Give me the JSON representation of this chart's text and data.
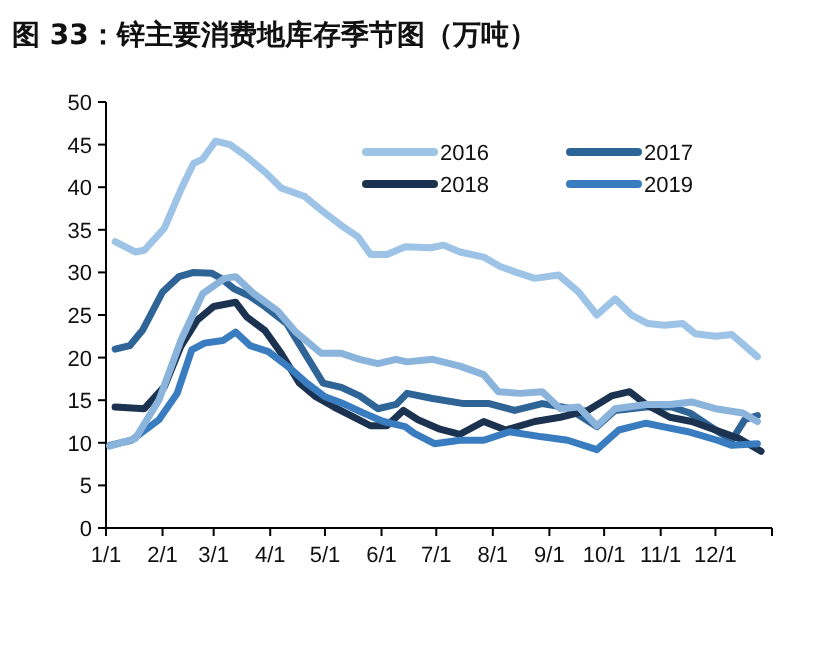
{
  "chart_data": {
    "type": "line",
    "title": "图 33：锌主要消费地库存季节图（万吨）",
    "xlim": [
      "--01-01",
      "--12-31"
    ],
    "xticks": [
      {
        "value": "--01-01",
        "label": "1/1"
      },
      {
        "value": "--02-01",
        "label": "2/1"
      },
      {
        "value": "--03-01",
        "label": "3/1"
      },
      {
        "value": "--04-01",
        "label": "4/1"
      },
      {
        "value": "--05-01",
        "label": "5/1"
      },
      {
        "value": "--06-01",
        "label": "6/1"
      },
      {
        "value": "--07-01",
        "label": "7/1"
      },
      {
        "value": "--08-01",
        "label": "8/1"
      },
      {
        "value": "--09-01",
        "label": "9/1"
      },
      {
        "value": "--10-01",
        "label": "10/1"
      },
      {
        "value": "--11-01",
        "label": "11/1"
      },
      {
        "value": "--12-01",
        "label": "12/1"
      }
    ],
    "ylim": [
      0,
      50
    ],
    "yticks": [
      0,
      5,
      10,
      15,
      20,
      25,
      30,
      35,
      40,
      45,
      50
    ],
    "legend": "top right",
    "series": [
      {
        "name": "2016",
        "color": "#9dc3e6",
        "x": [
          "--01-06",
          "--01-17",
          "--01-22",
          "--02-02",
          "--02-11",
          "--02-18",
          "--02-23",
          "--03-02",
          "--03-10",
          "--03-19",
          "--03-29",
          "--04-07",
          "--04-20",
          "--04-29",
          "--05-10",
          "--05-19",
          "--05-26",
          "--06-04",
          "--06-14",
          "--06-28",
          "--07-05",
          "--07-14",
          "--07-27",
          "--08-05",
          "--08-14",
          "--08-24",
          "--09-06",
          "--09-17",
          "--09-27",
          "--10-07",
          "--10-16",
          "--10-25",
          "--11-03",
          "--11-13",
          "--11-20",
          "--12-01",
          "--12-10",
          "--12-17",
          "--12-24"
        ],
        "values": [
          33.6,
          32.4,
          32.6,
          35.2,
          39.7,
          42.8,
          43.3,
          45.4,
          45,
          43.6,
          41.8,
          39.9,
          38.9,
          37.3,
          35.5,
          34.2,
          32.1,
          32.1,
          33,
          32.9,
          33.2,
          32.4,
          31.8,
          30.7,
          30,
          29.3,
          29.7,
          27.7,
          25,
          26.9,
          25,
          24,
          23.8,
          24,
          22.8,
          22.5,
          22.7,
          21.4,
          20.1
        ]
      },
      {
        "name": "2017",
        "color": "#2f6497",
        "x": [
          "--01-06",
          "--01-14",
          "--01-21",
          "--02-01",
          "--02-10",
          "--02-18",
          "--02-28",
          "--03-05",
          "--03-12",
          "--03-21",
          "--03-29",
          "--04-10",
          "--04-20",
          "--04-30",
          "--05-10",
          "--05-20",
          "--05-30",
          "--06-09",
          "--06-15",
          "--06-29",
          "--07-16",
          "--07-30",
          "--08-13",
          "--08-28",
          "--09-11",
          "--09-27",
          "--10-07",
          "--10-24",
          "--11-07",
          "--11-17",
          "--12-01",
          "--12-10",
          "--12-17",
          "--12-24"
        ],
        "values": [
          21,
          21.4,
          23.2,
          27.7,
          29.5,
          30,
          29.9,
          29.3,
          28.1,
          27.2,
          26,
          24,
          20.5,
          17,
          16.5,
          15.5,
          14,
          14.5,
          15.8,
          15.2,
          14.6,
          14.6,
          13.8,
          14.6,
          14.1,
          11.9,
          13.8,
          14.2,
          14.2,
          13.5,
          11.5,
          10.3,
          12.7,
          13.2
        ]
      },
      {
        "name": "2018",
        "color": "#1b3350",
        "x": [
          "--01-06",
          "--01-22",
          "--02-02",
          "--02-11",
          "--02-20",
          "--03-01",
          "--03-13",
          "--03-19",
          "--03-29",
          "--04-07",
          "--04-17",
          "--04-26",
          "--05-06",
          "--05-16",
          "--05-26",
          "--06-04",
          "--06-13",
          "--06-21",
          "--07-03",
          "--07-14",
          "--07-27",
          "--08-08",
          "--08-24",
          "--09-07",
          "--09-22",
          "--10-05",
          "--10-15",
          "--10-24",
          "--11-06",
          "--11-18",
          "--12-01",
          "--12-14",
          "--12-26"
        ],
        "values": [
          14.2,
          14,
          16.6,
          21.3,
          24.4,
          26,
          26.5,
          24.8,
          23.2,
          20.5,
          17,
          15.4,
          14.2,
          13.1,
          12,
          12,
          13.8,
          12.7,
          11.6,
          11,
          12.5,
          11.5,
          12.5,
          13,
          13.8,
          15.5,
          16,
          14.5,
          13,
          12.5,
          11.5,
          10.5,
          9
        ]
      },
      {
        "name": "2019",
        "color": "#3a7cc0",
        "x": [
          "--01-03",
          "--01-15",
          "--01-30",
          "--02-09",
          "--02-17",
          "--02-24",
          "--03-06",
          "--03-13",
          "--03-21",
          "--03-31",
          "--04-11",
          "--04-21",
          "--05-01",
          "--05-11",
          "--05-22",
          "--06-02",
          "--06-14",
          "--06-19",
          "--06-30",
          "--07-14",
          "--07-27",
          "--08-10",
          "--08-28",
          "--09-11",
          "--09-27",
          "--10-09",
          "--10-24",
          "--11-02",
          "--11-16",
          "--12-02",
          "--12-10",
          "--12-24"
        ],
        "values": [
          9.7,
          10.3,
          12.7,
          15.8,
          20.9,
          21.7,
          22,
          23,
          21.4,
          20.7,
          18.9,
          17,
          15.4,
          14.6,
          13.5,
          12.5,
          11.9,
          11.1,
          9.9,
          10.3,
          10.3,
          11.3,
          10.7,
          10.3,
          9.2,
          11.5,
          12.3,
          11.9,
          11.3,
          10.3,
          9.7,
          9.9
        ]
      },
      {
        "color": "#8ab4dc",
        "x": [
          "--01-03",
          "--01-17",
          "--01-30",
          "--02-11",
          "--02-23",
          "--03-07",
          "--03-13",
          "--03-23",
          "--04-05",
          "--04-15",
          "--04-29",
          "--05-10",
          "--05-20",
          "--05-30",
          "--06-09",
          "--06-15",
          "--06-29",
          "--07-14",
          "--07-27",
          "--08-04",
          "--08-16",
          "--08-28",
          "--09-07",
          "--09-17",
          "--09-27",
          "--10-07",
          "--10-24",
          "--11-06",
          "--11-18",
          "--12-01",
          "--12-16",
          "--12-24"
        ],
        "values": [
          9.6,
          10.5,
          15,
          22,
          27.5,
          29.3,
          29.5,
          27.5,
          25.5,
          23,
          20.5,
          20.5,
          19.8,
          19.3,
          19.8,
          19.5,
          19.8,
          19,
          18,
          16,
          15.8,
          16,
          14,
          14.2,
          12,
          14,
          14.5,
          14.5,
          14.8,
          14,
          13.5,
          12.5
        ]
      }
    ]
  }
}
